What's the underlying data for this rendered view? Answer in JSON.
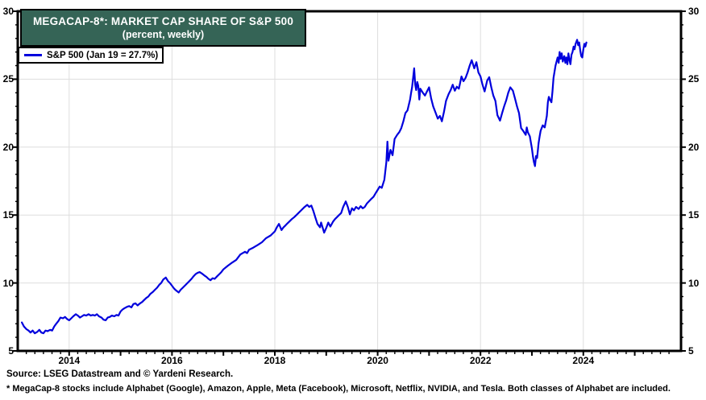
{
  "chart": {
    "title": "MEGACAP-8*: MARKET CAP SHARE OF S&P 500",
    "subtitle": "(percent, weekly)",
    "legend_label": "S&P 500 (Jan 19 = 27.7%)"
  },
  "footer": {
    "source": "Source: LSEG Datastream and © Yardeni Research.",
    "note": "* MegaCap-8 stocks include Alphabet (Google), Amazon, Apple, Meta (Facebook), Microsoft, Netflix, NVIDIA, and Tesla. Both classes of Alphabet are included."
  },
  "colors": {
    "line": "#0000DD",
    "title_bg": "#356456",
    "title_text": "#FFFFFF",
    "grid": "#DEDEDE",
    "frame": "#000000"
  },
  "chart_data": {
    "type": "line",
    "title": "MEGACAP-8*: MARKET CAP SHARE OF S&P 500",
    "subtitle": "(percent, weekly)",
    "legend": [
      "S&P 500 (Jan 19 = 27.7%)"
    ],
    "legend_position": "top-left",
    "xlabel": "",
    "ylabel": "percent",
    "xlim": [
      2013.0,
      2025.9
    ],
    "ylim": [
      5,
      30
    ],
    "y_ticks": [
      5,
      10,
      15,
      20,
      25,
      30
    ],
    "y_gridlines": [
      10,
      15,
      20,
      25
    ],
    "x_ticks": [
      2014,
      2016,
      2018,
      2020,
      2022,
      2024
    ],
    "grid": true,
    "dual_y_axis": true,
    "series": [
      {
        "name": "MegaCap-8 market cap share of S&P 500 (%)",
        "points": [
          [
            2013.08,
            7.1
          ],
          [
            2013.12,
            6.8
          ],
          [
            2013.17,
            6.6
          ],
          [
            2013.21,
            6.5
          ],
          [
            2013.25,
            6.35
          ],
          [
            2013.29,
            6.5
          ],
          [
            2013.33,
            6.3
          ],
          [
            2013.38,
            6.4
          ],
          [
            2013.42,
            6.55
          ],
          [
            2013.46,
            6.35
          ],
          [
            2013.5,
            6.3
          ],
          [
            2013.54,
            6.5
          ],
          [
            2013.58,
            6.45
          ],
          [
            2013.63,
            6.55
          ],
          [
            2013.67,
            6.5
          ],
          [
            2013.71,
            6.8
          ],
          [
            2013.75,
            7.0
          ],
          [
            2013.79,
            7.2
          ],
          [
            2013.83,
            7.45
          ],
          [
            2013.88,
            7.4
          ],
          [
            2013.92,
            7.5
          ],
          [
            2013.96,
            7.35
          ],
          [
            2014.0,
            7.25
          ],
          [
            2014.04,
            7.4
          ],
          [
            2014.08,
            7.55
          ],
          [
            2014.13,
            7.7
          ],
          [
            2014.17,
            7.6
          ],
          [
            2014.21,
            7.45
          ],
          [
            2014.25,
            7.55
          ],
          [
            2014.29,
            7.65
          ],
          [
            2014.33,
            7.6
          ],
          [
            2014.38,
            7.7
          ],
          [
            2014.42,
            7.6
          ],
          [
            2014.46,
            7.65
          ],
          [
            2014.5,
            7.6
          ],
          [
            2014.54,
            7.7
          ],
          [
            2014.58,
            7.55
          ],
          [
            2014.63,
            7.45
          ],
          [
            2014.67,
            7.3
          ],
          [
            2014.71,
            7.25
          ],
          [
            2014.75,
            7.45
          ],
          [
            2014.79,
            7.5
          ],
          [
            2014.83,
            7.6
          ],
          [
            2014.88,
            7.55
          ],
          [
            2014.92,
            7.65
          ],
          [
            2014.96,
            7.6
          ],
          [
            2015.0,
            7.9
          ],
          [
            2015.04,
            8.05
          ],
          [
            2015.08,
            8.15
          ],
          [
            2015.13,
            8.25
          ],
          [
            2015.17,
            8.3
          ],
          [
            2015.21,
            8.2
          ],
          [
            2015.25,
            8.45
          ],
          [
            2015.29,
            8.5
          ],
          [
            2015.33,
            8.35
          ],
          [
            2015.38,
            8.5
          ],
          [
            2015.42,
            8.6
          ],
          [
            2015.46,
            8.75
          ],
          [
            2015.5,
            8.9
          ],
          [
            2015.54,
            9.0
          ],
          [
            2015.58,
            9.2
          ],
          [
            2015.63,
            9.35
          ],
          [
            2015.67,
            9.5
          ],
          [
            2015.71,
            9.65
          ],
          [
            2015.75,
            9.85
          ],
          [
            2015.79,
            10.0
          ],
          [
            2015.83,
            10.25
          ],
          [
            2015.88,
            10.4
          ],
          [
            2015.92,
            10.15
          ],
          [
            2015.96,
            10.0
          ],
          [
            2016.0,
            9.8
          ],
          [
            2016.04,
            9.6
          ],
          [
            2016.08,
            9.45
          ],
          [
            2016.13,
            9.3
          ],
          [
            2016.17,
            9.5
          ],
          [
            2016.21,
            9.65
          ],
          [
            2016.25,
            9.8
          ],
          [
            2016.29,
            9.95
          ],
          [
            2016.33,
            10.1
          ],
          [
            2016.38,
            10.3
          ],
          [
            2016.42,
            10.5
          ],
          [
            2016.46,
            10.65
          ],
          [
            2016.5,
            10.75
          ],
          [
            2016.54,
            10.8
          ],
          [
            2016.58,
            10.7
          ],
          [
            2016.63,
            10.55
          ],
          [
            2016.67,
            10.45
          ],
          [
            2016.71,
            10.3
          ],
          [
            2016.75,
            10.2
          ],
          [
            2016.79,
            10.35
          ],
          [
            2016.83,
            10.3
          ],
          [
            2016.88,
            10.5
          ],
          [
            2016.92,
            10.65
          ],
          [
            2016.96,
            10.8
          ],
          [
            2017.0,
            11.0
          ],
          [
            2017.08,
            11.25
          ],
          [
            2017.17,
            11.5
          ],
          [
            2017.25,
            11.7
          ],
          [
            2017.33,
            12.1
          ],
          [
            2017.42,
            12.3
          ],
          [
            2017.46,
            12.2
          ],
          [
            2017.5,
            12.45
          ],
          [
            2017.58,
            12.6
          ],
          [
            2017.67,
            12.8
          ],
          [
            2017.75,
            13.0
          ],
          [
            2017.83,
            13.3
          ],
          [
            2017.92,
            13.5
          ],
          [
            2018.0,
            13.8
          ],
          [
            2018.04,
            14.1
          ],
          [
            2018.08,
            14.35
          ],
          [
            2018.13,
            13.9
          ],
          [
            2018.17,
            14.1
          ],
          [
            2018.21,
            14.25
          ],
          [
            2018.25,
            14.4
          ],
          [
            2018.29,
            14.55
          ],
          [
            2018.33,
            14.7
          ],
          [
            2018.38,
            14.85
          ],
          [
            2018.42,
            15.0
          ],
          [
            2018.46,
            15.15
          ],
          [
            2018.5,
            15.3
          ],
          [
            2018.54,
            15.45
          ],
          [
            2018.58,
            15.6
          ],
          [
            2018.63,
            15.75
          ],
          [
            2018.67,
            15.6
          ],
          [
            2018.71,
            15.7
          ],
          [
            2018.75,
            15.3
          ],
          [
            2018.79,
            14.8
          ],
          [
            2018.83,
            14.35
          ],
          [
            2018.88,
            14.1
          ],
          [
            2018.9,
            14.45
          ],
          [
            2018.92,
            14.2
          ],
          [
            2018.96,
            13.7
          ],
          [
            2019.0,
            14.05
          ],
          [
            2019.04,
            14.45
          ],
          [
            2019.08,
            14.15
          ],
          [
            2019.13,
            14.5
          ],
          [
            2019.17,
            14.7
          ],
          [
            2019.21,
            14.85
          ],
          [
            2019.25,
            15.0
          ],
          [
            2019.29,
            15.15
          ],
          [
            2019.33,
            15.6
          ],
          [
            2019.38,
            16.0
          ],
          [
            2019.42,
            15.6
          ],
          [
            2019.46,
            15.05
          ],
          [
            2019.5,
            15.5
          ],
          [
            2019.54,
            15.35
          ],
          [
            2019.58,
            15.6
          ],
          [
            2019.63,
            15.45
          ],
          [
            2019.67,
            15.65
          ],
          [
            2019.71,
            15.5
          ],
          [
            2019.75,
            15.6
          ],
          [
            2019.79,
            15.85
          ],
          [
            2019.83,
            16.0
          ],
          [
            2019.88,
            16.2
          ],
          [
            2019.92,
            16.35
          ],
          [
            2019.96,
            16.6
          ],
          [
            2020.0,
            16.85
          ],
          [
            2020.04,
            17.1
          ],
          [
            2020.08,
            17.0
          ],
          [
            2020.13,
            17.6
          ],
          [
            2020.17,
            18.9
          ],
          [
            2020.19,
            20.4
          ],
          [
            2020.21,
            19.0
          ],
          [
            2020.25,
            19.8
          ],
          [
            2020.29,
            19.4
          ],
          [
            2020.33,
            20.6
          ],
          [
            2020.38,
            20.9
          ],
          [
            2020.42,
            21.1
          ],
          [
            2020.46,
            21.4
          ],
          [
            2020.5,
            21.9
          ],
          [
            2020.54,
            22.5
          ],
          [
            2020.58,
            22.7
          ],
          [
            2020.63,
            23.5
          ],
          [
            2020.65,
            24.0
          ],
          [
            2020.67,
            24.4
          ],
          [
            2020.69,
            25.1
          ],
          [
            2020.71,
            25.8
          ],
          [
            2020.73,
            24.6
          ],
          [
            2020.75,
            24.2
          ],
          [
            2020.77,
            24.8
          ],
          [
            2020.79,
            24.5
          ],
          [
            2020.81,
            23.5
          ],
          [
            2020.83,
            24.3
          ],
          [
            2020.88,
            24.0
          ],
          [
            2020.92,
            23.8
          ],
          [
            2020.96,
            24.1
          ],
          [
            2021.0,
            24.4
          ],
          [
            2021.04,
            23.6
          ],
          [
            2021.08,
            23.0
          ],
          [
            2021.13,
            22.5
          ],
          [
            2021.17,
            22.1
          ],
          [
            2021.21,
            22.3
          ],
          [
            2021.25,
            21.9
          ],
          [
            2021.29,
            22.6
          ],
          [
            2021.33,
            23.4
          ],
          [
            2021.38,
            23.9
          ],
          [
            2021.42,
            24.2
          ],
          [
            2021.46,
            24.6
          ],
          [
            2021.5,
            24.15
          ],
          [
            2021.54,
            24.45
          ],
          [
            2021.58,
            24.3
          ],
          [
            2021.63,
            25.2
          ],
          [
            2021.67,
            24.85
          ],
          [
            2021.71,
            25.1
          ],
          [
            2021.75,
            25.5
          ],
          [
            2021.79,
            26.0
          ],
          [
            2021.83,
            26.4
          ],
          [
            2021.88,
            25.8
          ],
          [
            2021.92,
            26.25
          ],
          [
            2021.96,
            25.5
          ],
          [
            2022.0,
            25.2
          ],
          [
            2022.04,
            24.6
          ],
          [
            2022.08,
            24.1
          ],
          [
            2022.13,
            24.9
          ],
          [
            2022.17,
            25.15
          ],
          [
            2022.21,
            24.4
          ],
          [
            2022.25,
            23.8
          ],
          [
            2022.29,
            23.4
          ],
          [
            2022.33,
            22.35
          ],
          [
            2022.38,
            21.95
          ],
          [
            2022.42,
            22.5
          ],
          [
            2022.46,
            23.0
          ],
          [
            2022.5,
            23.45
          ],
          [
            2022.54,
            24.0
          ],
          [
            2022.58,
            24.4
          ],
          [
            2022.63,
            24.15
          ],
          [
            2022.67,
            23.6
          ],
          [
            2022.71,
            23.0
          ],
          [
            2022.75,
            22.5
          ],
          [
            2022.79,
            21.4
          ],
          [
            2022.83,
            21.2
          ],
          [
            2022.88,
            20.9
          ],
          [
            2022.9,
            21.45
          ],
          [
            2022.92,
            21.1
          ],
          [
            2022.96,
            20.8
          ],
          [
            2023.0,
            19.9
          ],
          [
            2023.02,
            19.3
          ],
          [
            2023.04,
            18.9
          ],
          [
            2023.06,
            18.6
          ],
          [
            2023.08,
            19.35
          ],
          [
            2023.1,
            19.2
          ],
          [
            2023.13,
            20.3
          ],
          [
            2023.15,
            20.8
          ],
          [
            2023.17,
            21.2
          ],
          [
            2023.21,
            21.6
          ],
          [
            2023.25,
            21.45
          ],
          [
            2023.29,
            22.3
          ],
          [
            2023.31,
            23.3
          ],
          [
            2023.33,
            23.7
          ],
          [
            2023.35,
            23.5
          ],
          [
            2023.38,
            23.3
          ],
          [
            2023.4,
            24.1
          ],
          [
            2023.42,
            25.1
          ],
          [
            2023.46,
            26.0
          ],
          [
            2023.5,
            26.6
          ],
          [
            2023.52,
            26.2
          ],
          [
            2023.54,
            27.0
          ],
          [
            2023.56,
            26.5
          ],
          [
            2023.58,
            26.9
          ],
          [
            2023.6,
            26.3
          ],
          [
            2023.63,
            26.7
          ],
          [
            2023.65,
            26.2
          ],
          [
            2023.67,
            26.6
          ],
          [
            2023.69,
            26.1
          ],
          [
            2023.71,
            26.9
          ],
          [
            2023.73,
            26.4
          ],
          [
            2023.75,
            26.1
          ],
          [
            2023.77,
            26.8
          ],
          [
            2023.79,
            27.0
          ],
          [
            2023.81,
            27.4
          ],
          [
            2023.83,
            27.2
          ],
          [
            2023.85,
            27.6
          ],
          [
            2023.88,
            27.9
          ],
          [
            2023.9,
            27.5
          ],
          [
            2023.92,
            27.7
          ],
          [
            2023.94,
            27.1
          ],
          [
            2023.96,
            26.7
          ],
          [
            2023.98,
            26.6
          ],
          [
            2024.0,
            27.2
          ],
          [
            2024.02,
            27.6
          ],
          [
            2024.04,
            27.4
          ],
          [
            2024.06,
            27.7
          ]
        ]
      }
    ]
  }
}
